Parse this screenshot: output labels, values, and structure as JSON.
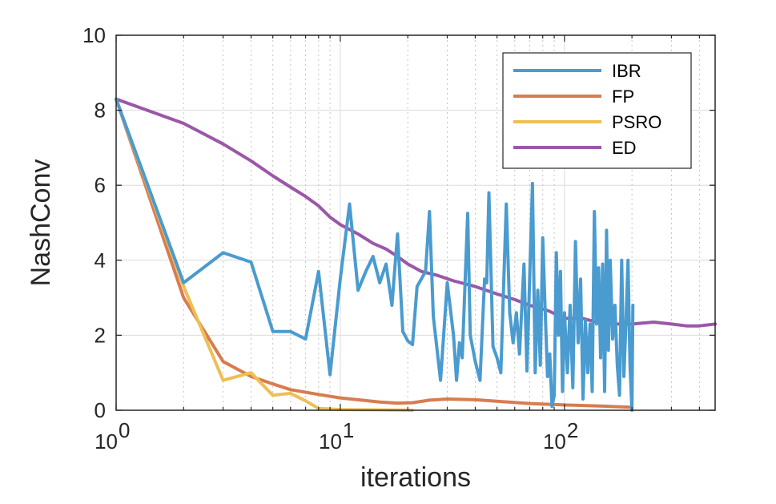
{
  "chart_data": {
    "type": "line",
    "title": "",
    "xlabel": "iterations",
    "ylabel": "NashConv",
    "xscale": "log",
    "xlim": [
      1,
      470
    ],
    "ylim": [
      0,
      10
    ],
    "grid": true,
    "legend_position": "top-right",
    "x_ticks": [
      {
        "value": 1,
        "base": "10",
        "exp": "0"
      },
      {
        "value": 10,
        "base": "10",
        "exp": "1"
      },
      {
        "value": 100,
        "base": "10",
        "exp": "2"
      }
    ],
    "y_ticks": [
      {
        "value": 0,
        "label": "0"
      },
      {
        "value": 2,
        "label": "2"
      },
      {
        "value": 4,
        "label": "4"
      },
      {
        "value": 6,
        "label": "6"
      },
      {
        "value": 8,
        "label": "8"
      },
      {
        "value": 10,
        "label": "10"
      }
    ],
    "series": [
      {
        "name": "IBR",
        "color": "#4A9BCF",
        "points": [
          [
            1,
            8.3
          ],
          [
            2,
            3.4
          ],
          [
            3,
            4.2
          ],
          [
            4,
            3.95
          ],
          [
            5,
            2.1
          ],
          [
            6,
            2.1
          ],
          [
            7,
            1.9
          ],
          [
            8,
            3.7
          ],
          [
            9,
            0.95
          ],
          [
            10,
            3.5
          ],
          [
            11,
            5.5
          ],
          [
            12,
            3.2
          ],
          [
            13,
            3.7
          ],
          [
            14,
            4.1
          ],
          [
            15,
            3.4
          ],
          [
            16,
            3.9
          ],
          [
            17,
            2.8
          ],
          [
            18,
            4.7
          ],
          [
            19,
            2.1
          ],
          [
            20,
            1.85
          ],
          [
            21,
            1.75
          ],
          [
            22,
            3.3
          ],
          [
            24,
            3.7
          ],
          [
            25,
            5.3
          ],
          [
            26,
            2.5
          ],
          [
            28,
            0.8
          ],
          [
            30,
            3.4
          ],
          [
            32,
            2.0
          ],
          [
            33,
            0.8
          ],
          [
            34,
            1.8
          ],
          [
            35,
            1.4
          ],
          [
            37,
            5.25
          ],
          [
            38,
            2.0
          ],
          [
            40,
            1.3
          ],
          [
            42,
            0.8
          ],
          [
            44,
            3.5
          ],
          [
            45,
            3.4
          ],
          [
            46,
            5.8
          ],
          [
            48,
            1.7
          ],
          [
            50,
            1.4
          ],
          [
            52,
            1.0
          ],
          [
            55,
            5.5
          ],
          [
            57,
            2.6
          ],
          [
            59,
            1.8
          ],
          [
            61,
            2.6
          ],
          [
            63,
            1.5
          ],
          [
            66,
            3.9
          ],
          [
            68,
            1.05
          ],
          [
            70,
            3.6
          ],
          [
            72,
            6.05
          ],
          [
            74,
            1.0
          ],
          [
            76,
            3.2
          ],
          [
            78,
            1.2
          ],
          [
            80,
            4.6
          ],
          [
            82,
            2.7
          ],
          [
            84,
            0.9
          ],
          [
            86,
            1.5
          ],
          [
            88,
            0.1
          ],
          [
            90,
            0.4
          ],
          [
            92,
            4.2
          ],
          [
            94,
            2.0
          ],
          [
            96,
            3.7
          ],
          [
            98,
            0.5
          ],
          [
            100,
            2.6
          ],
          [
            103,
            1.0
          ],
          [
            106,
            2.8
          ],
          [
            109,
            0.6
          ],
          [
            112,
            4.5
          ],
          [
            115,
            1.8
          ],
          [
            118,
            3.5
          ],
          [
            121,
            0.3
          ],
          [
            124,
            2.4
          ],
          [
            127,
            1.0
          ],
          [
            130,
            2.3
          ],
          [
            133,
            0.5
          ],
          [
            136,
            5.3
          ],
          [
            139,
            2.3
          ],
          [
            142,
            3.8
          ],
          [
            145,
            1.4
          ],
          [
            148,
            3.9
          ],
          [
            151,
            0.5
          ],
          [
            154,
            4.8
          ],
          [
            157,
            1.6
          ],
          [
            160,
            4.0
          ],
          [
            164,
            1.9
          ],
          [
            168,
            2.8
          ],
          [
            172,
            1.2
          ],
          [
            176,
            0.4
          ],
          [
            180,
            4.0
          ],
          [
            184,
            0.9
          ],
          [
            188,
            2.3
          ],
          [
            192,
            4.0
          ],
          [
            196,
            1.2
          ],
          [
            200,
            0.0
          ],
          [
            202,
            2.8
          ]
        ]
      },
      {
        "name": "FP",
        "color": "#D87C50",
        "points": [
          [
            1,
            8.3
          ],
          [
            2,
            3.0
          ],
          [
            3,
            1.3
          ],
          [
            4,
            0.9
          ],
          [
            5,
            0.7
          ],
          [
            6,
            0.55
          ],
          [
            7,
            0.48
          ],
          [
            8,
            0.42
          ],
          [
            10,
            0.33
          ],
          [
            12,
            0.28
          ],
          [
            15,
            0.22
          ],
          [
            18,
            0.19
          ],
          [
            21,
            0.2
          ],
          [
            25,
            0.27
          ],
          [
            30,
            0.3
          ],
          [
            40,
            0.28
          ],
          [
            50,
            0.24
          ],
          [
            70,
            0.18
          ],
          [
            100,
            0.14
          ],
          [
            150,
            0.11
          ],
          [
            200,
            0.08
          ]
        ]
      },
      {
        "name": "PSRO",
        "color": "#EDBF55",
        "points": [
          [
            1,
            8.3
          ],
          [
            2,
            3.3
          ],
          [
            3,
            0.8
          ],
          [
            4,
            1.0
          ],
          [
            5,
            0.4
          ],
          [
            6,
            0.45
          ],
          [
            7,
            0.25
          ],
          [
            8,
            0.05
          ],
          [
            10,
            0.02
          ],
          [
            15,
            0.01
          ],
          [
            21,
            0.0
          ]
        ]
      },
      {
        "name": "ED",
        "color": "#9B57A8",
        "points": [
          [
            1,
            8.3
          ],
          [
            2,
            7.65
          ],
          [
            3,
            7.1
          ],
          [
            4,
            6.65
          ],
          [
            5,
            6.25
          ],
          [
            6,
            5.95
          ],
          [
            7,
            5.7
          ],
          [
            8,
            5.45
          ],
          [
            9,
            5.15
          ],
          [
            10,
            4.95
          ],
          [
            12,
            4.7
          ],
          [
            14,
            4.45
          ],
          [
            16,
            4.3
          ],
          [
            18,
            4.1
          ],
          [
            20,
            3.9
          ],
          [
            23,
            3.7
          ],
          [
            27,
            3.6
          ],
          [
            32,
            3.45
          ],
          [
            40,
            3.3
          ],
          [
            50,
            3.1
          ],
          [
            60,
            2.95
          ],
          [
            70,
            2.8
          ],
          [
            85,
            2.65
          ],
          [
            100,
            2.45
          ],
          [
            120,
            2.45
          ],
          [
            150,
            2.3
          ],
          [
            200,
            2.3
          ],
          [
            250,
            2.35
          ],
          [
            300,
            2.3
          ],
          [
            350,
            2.25
          ],
          [
            400,
            2.25
          ],
          [
            470,
            2.3
          ]
        ]
      }
    ]
  }
}
